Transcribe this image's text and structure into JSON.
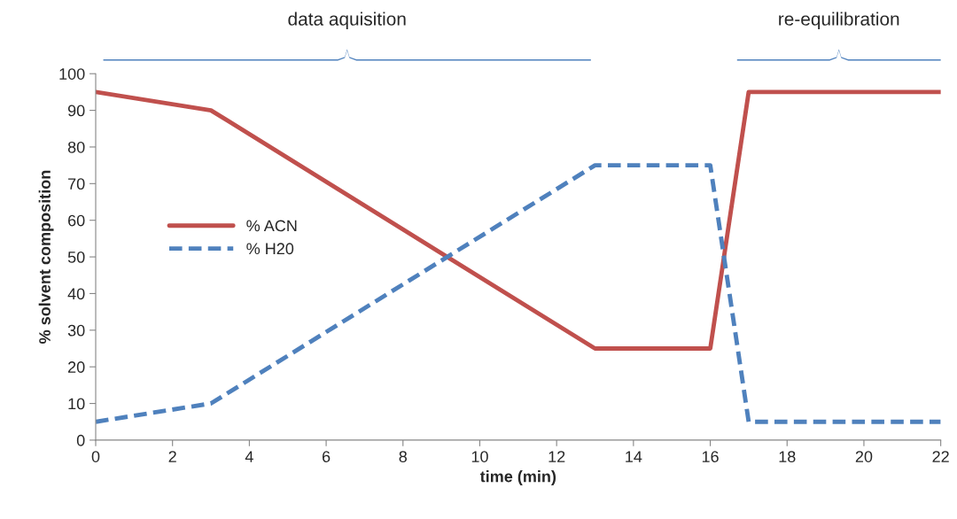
{
  "chart_data": {
    "type": "line",
    "xlabel": "time (min)",
    "ylabel": "% solvent composition",
    "xlim": [
      0,
      22
    ],
    "xticks": [
      0,
      2,
      4,
      6,
      8,
      10,
      12,
      14,
      16,
      18,
      20,
      22
    ],
    "ylim": [
      0,
      100
    ],
    "yticks": [
      0,
      10,
      20,
      30,
      40,
      50,
      60,
      70,
      80,
      90,
      100
    ],
    "grid": false,
    "legend": "center left",
    "marker": "none",
    "series": [
      {
        "name": "% ACN",
        "color": "#c0504d",
        "line_style": "solid",
        "x": [
          0,
          3,
          13,
          16,
          17,
          22
        ],
        "values": [
          95,
          90,
          25,
          25,
          95,
          95
        ]
      },
      {
        "name": "% H20",
        "color": "#4f81bd",
        "line_style": "dashed",
        "x": [
          0,
          3,
          13,
          16,
          17,
          22
        ],
        "values": [
          5,
          10,
          75,
          75,
          5,
          5
        ]
      }
    ],
    "annotations": [
      "data aquisition",
      "re-equilibration"
    ]
  }
}
